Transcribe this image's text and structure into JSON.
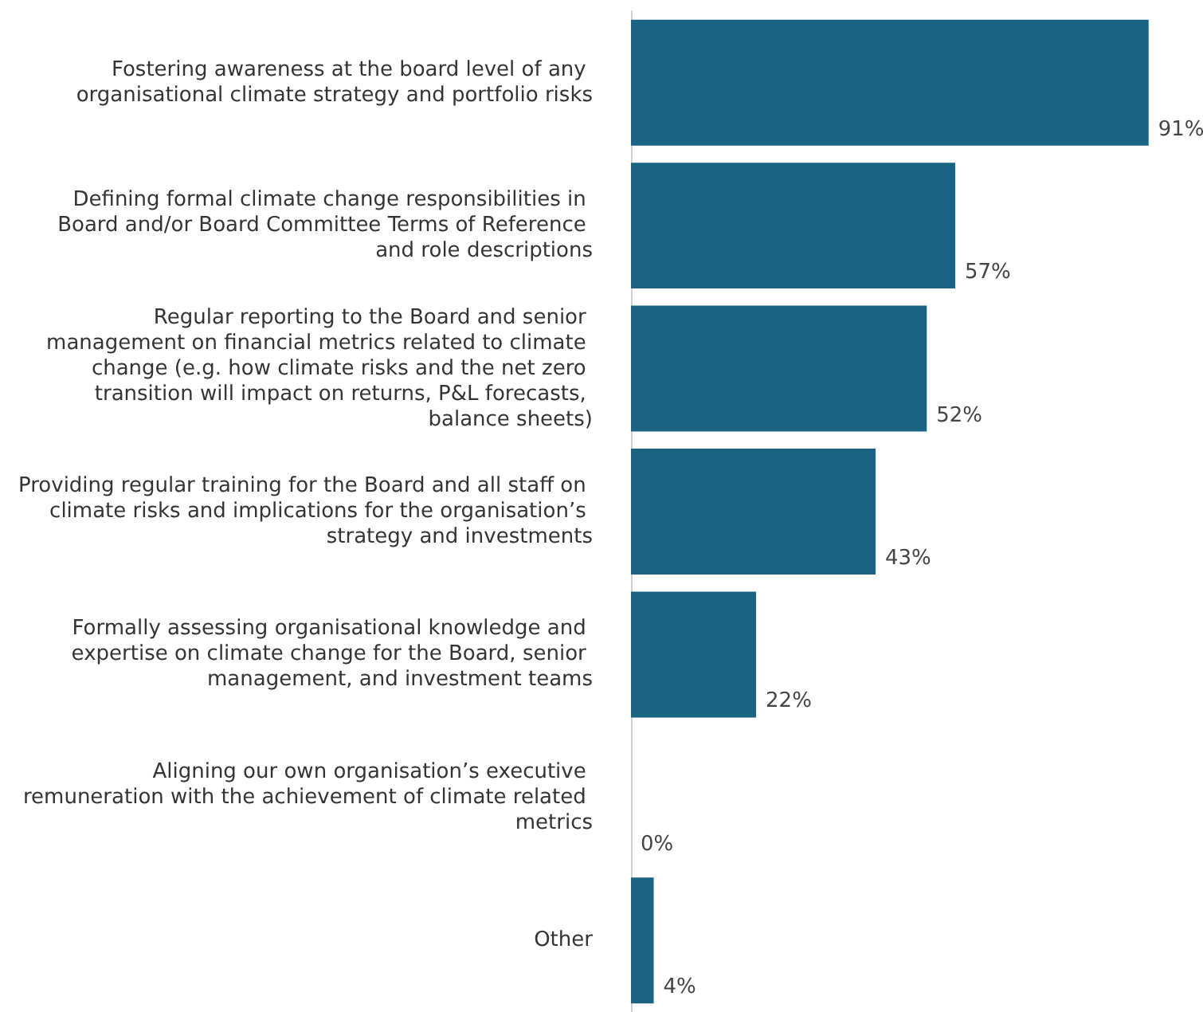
{
  "chart_data": {
    "type": "bar",
    "orientation": "horizontal",
    "categories": [
      "Fostering awareness at the board level of any organisational climate strategy and portfolio risks",
      "Defining formal climate change responsibilities in Board and/or Board Committee Terms of Reference and role descriptions",
      "Regular reporting to the Board and senior management on financial metrics related to climate change (e.g. how climate risks and the net zero transition will impact on returns, P&L forecasts, balance sheets)",
      "Providing regular training for the Board and all staff on climate risks and implications for the organisation’s strategy and investments",
      "Formally assessing organisational knowledge and expertise on climate change for the Board, senior management, and investment teams",
      "Aligning our own organisation’s executive remuneration with the achievement of climate related metrics",
      "Other"
    ],
    "values": [
      91,
      57,
      52,
      43,
      22,
      0,
      4
    ],
    "value_labels": [
      "91%",
      "57%",
      "52%",
      "43%",
      "22%",
      "0%",
      "4%"
    ],
    "color": "#1a6382"
  }
}
